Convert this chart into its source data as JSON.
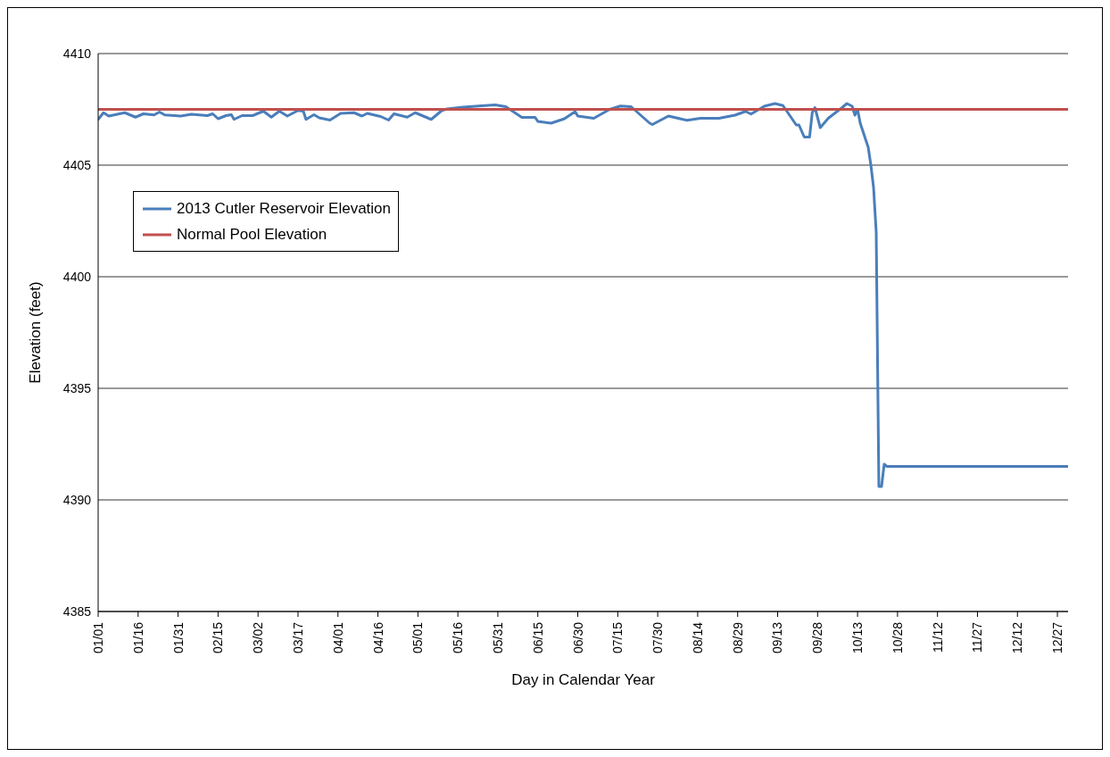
{
  "chart_data": {
    "type": "line",
    "xlabel": "Day in Calendar Year",
    "ylabel": "Elevation (feet)",
    "xlim": [
      "--01-01",
      "--12-31"
    ],
    "xticks": [
      {
        "value": "--01-01",
        "label": "01/01"
      },
      {
        "value": "--01-16",
        "label": "01/16"
      },
      {
        "value": "--01-31",
        "label": "01/31"
      },
      {
        "value": "--02-15",
        "label": "02/15"
      },
      {
        "value": "--03-02",
        "label": "03/02"
      },
      {
        "value": "--03-17",
        "label": "03/17"
      },
      {
        "value": "--04-01",
        "label": "04/01"
      },
      {
        "value": "--04-16",
        "label": "04/16"
      },
      {
        "value": "--05-01",
        "label": "05/01"
      },
      {
        "value": "--05-16",
        "label": "05/16"
      },
      {
        "value": "--05-31",
        "label": "05/31"
      },
      {
        "value": "--06-15",
        "label": "06/15"
      },
      {
        "value": "--06-30",
        "label": "06/30"
      },
      {
        "value": "--07-15",
        "label": "07/15"
      },
      {
        "value": "--07-30",
        "label": "07/30"
      },
      {
        "value": "--08-14",
        "label": "08/14"
      },
      {
        "value": "--08-29",
        "label": "08/29"
      },
      {
        "value": "--09-13",
        "label": "09/13"
      },
      {
        "value": "--09-28",
        "label": "09/28"
      },
      {
        "value": "--10-13",
        "label": "10/13"
      },
      {
        "value": "--10-28",
        "label": "10/28"
      },
      {
        "value": "--11-12",
        "label": "11/12"
      },
      {
        "value": "--11-27",
        "label": "11/27"
      },
      {
        "value": "--12-12",
        "label": "12/12"
      },
      {
        "value": "--12-27",
        "label": "12/27"
      }
    ],
    "ylim": [
      4385,
      4410
    ],
    "yticks": [
      4385,
      4390,
      4395,
      4400,
      4405,
      4410
    ],
    "grid": "y",
    "legend": "top left",
    "marker": "none",
    "line_style": "solid",
    "series": [
      {
        "name": "2013 Cutler Reservoir Elevation",
        "color": "#4a7ebb",
        "x": [
          "--01-01",
          "--01-03",
          "--01-05",
          "--01-11",
          "--01-15",
          "--01-18",
          "--01-22",
          "--01-24",
          "--01-26",
          "--02-01",
          "--02-05",
          "--02-11",
          "--02-13",
          "--02-15",
          "--02-18",
          "--02-20",
          "--02-21",
          "--02-24",
          "--02-28",
          "--03-04",
          "--03-07",
          "--03-10",
          "--03-13",
          "--03-17",
          "--03-19",
          "--03-20",
          "--03-23",
          "--03-25",
          "--03-29",
          "--04-02",
          "--04-07",
          "--04-10",
          "--04-12",
          "--04-17",
          "--04-20",
          "--04-22",
          "--04-27",
          "--04-30",
          "--05-04",
          "--05-06",
          "--05-10",
          "--05-12",
          "--05-18",
          "--05-25",
          "--05-30",
          "--06-03",
          "--06-09",
          "--06-14",
          "--06-15",
          "--06-20",
          "--06-25",
          "--06-29",
          "--06-30",
          "--07-06",
          "--07-12",
          "--07-16",
          "--07-20",
          "--07-27",
          "--07-28",
          "--08-03",
          "--08-10",
          "--08-15",
          "--08-22",
          "--08-28",
          "--09-01",
          "--09-03",
          "--09-08",
          "--09-12",
          "--09-15",
          "--09-20",
          "--09-21",
          "--09-23",
          "--09-25",
          "--09-26",
          "--09-27",
          "--09-29",
          "--10-02",
          "--10-07",
          "--10-09",
          "--10-11",
          "--10-12",
          "--10-13",
          "--10-14",
          "--10-17",
          "--10-18",
          "--10-19",
          "--10-20",
          "--10-21",
          "--10-22",
          "--10-23",
          "--10-24",
          "--12-31"
        ],
        "values": [
          4407.05,
          4407.35,
          4407.2,
          4407.35,
          4407.15,
          4407.3,
          4407.25,
          4407.38,
          4407.25,
          4407.2,
          4407.28,
          4407.22,
          4407.3,
          4407.08,
          4407.22,
          4407.26,
          4407.05,
          4407.22,
          4407.22,
          4407.42,
          4407.15,
          4407.42,
          4407.2,
          4407.45,
          4407.42,
          4407.05,
          4407.26,
          4407.12,
          4407.02,
          4407.32,
          4407.35,
          4407.2,
          4407.32,
          4407.18,
          4407.02,
          4407.3,
          4407.15,
          4407.35,
          4407.15,
          4407.05,
          4407.45,
          4407.52,
          4407.6,
          4407.66,
          4407.7,
          4407.62,
          4407.14,
          4407.14,
          4406.96,
          4406.88,
          4407.08,
          4407.4,
          4407.2,
          4407.1,
          4407.5,
          4407.65,
          4407.62,
          4406.88,
          4406.82,
          4407.2,
          4407.01,
          4407.1,
          4407.1,
          4407.24,
          4407.41,
          4407.29,
          4407.64,
          4407.76,
          4407.67,
          4406.8,
          4406.8,
          4406.26,
          4406.26,
          4407.36,
          4407.58,
          4406.68,
          4407.1,
          4407.56,
          4407.76,
          4407.64,
          4407.24,
          4407.5,
          4406.88,
          4405.8,
          4405.0,
          4404.0,
          4402.0,
          4390.6,
          4390.6,
          4391.6,
          4391.5,
          4391.5
        ]
      },
      {
        "name": "Normal Pool Elevation",
        "color": "#c0504d",
        "x": [
          "--01-01",
          "--12-31"
        ],
        "values": [
          4407.5,
          4407.5
        ]
      }
    ]
  }
}
